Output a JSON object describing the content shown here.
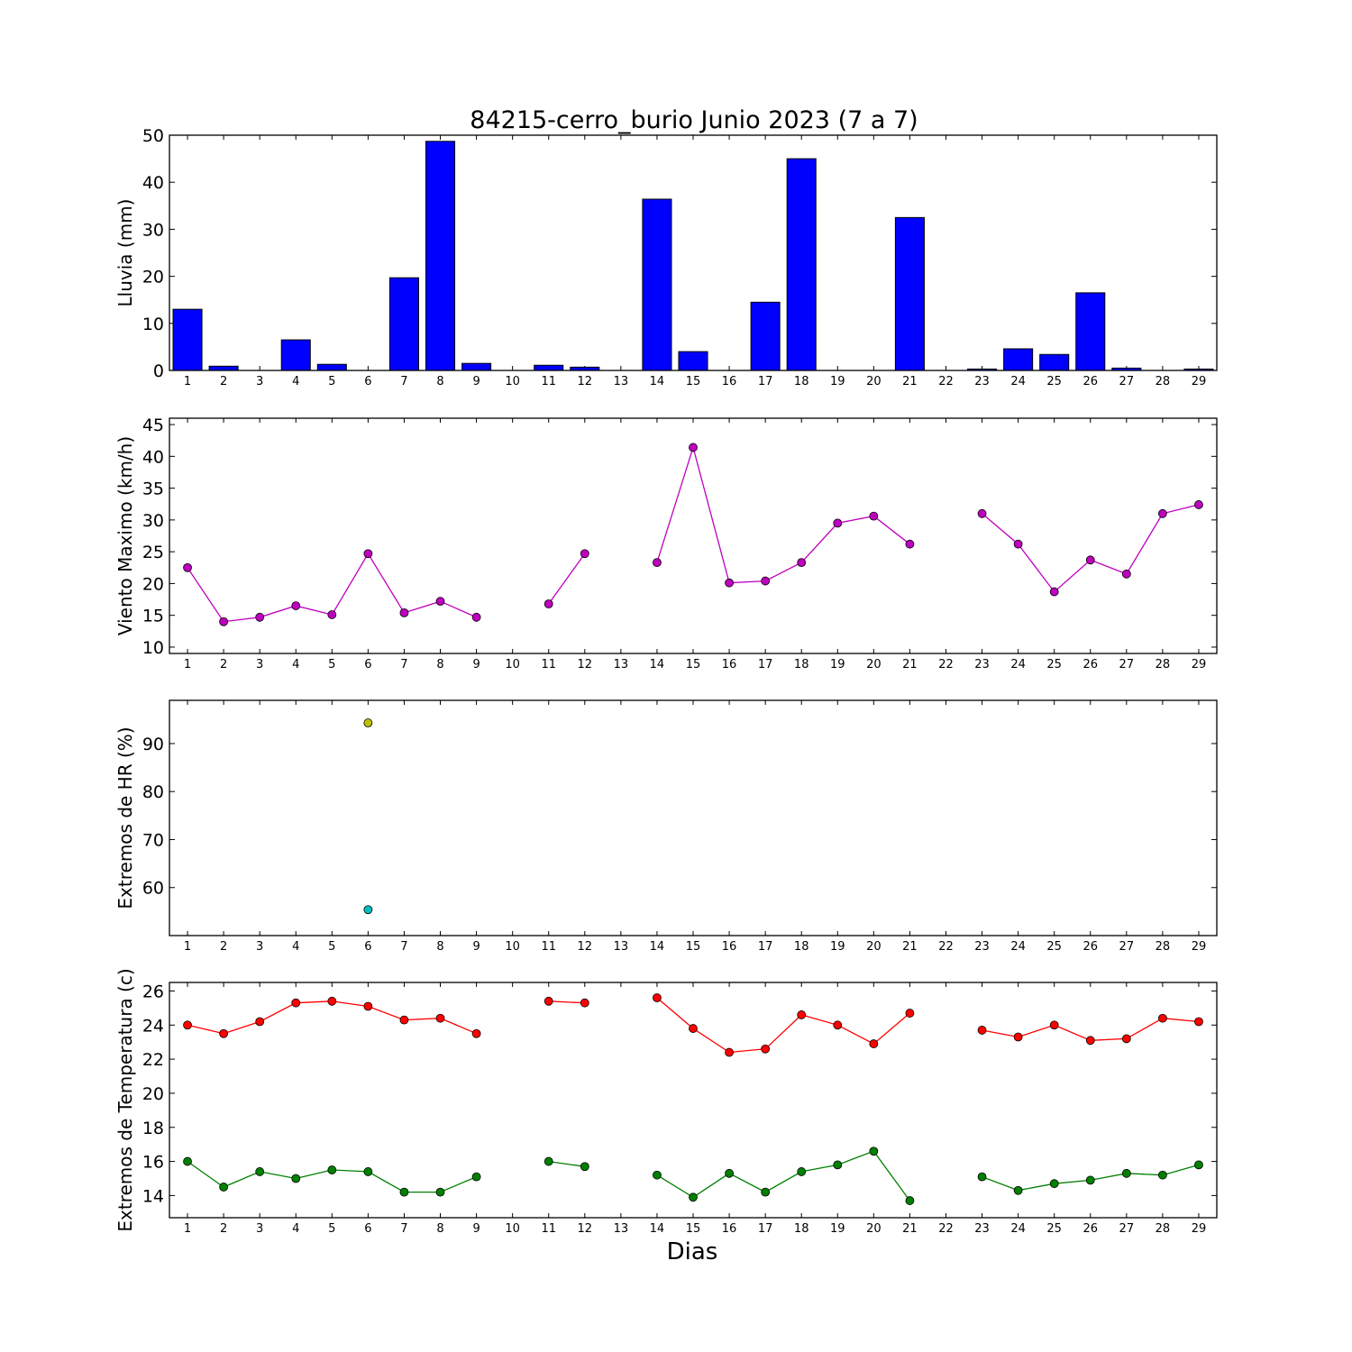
{
  "figure_title": "84215-cerro_burio Junio 2023  (7 a 7)",
  "x_axis_label": "Dias",
  "x_ticks": [
    "1",
    "2",
    "3",
    "4",
    "5",
    "6",
    "7",
    "8",
    "9",
    "10",
    "11",
    "12",
    "13",
    "14",
    "15",
    "16",
    "17",
    "18",
    "19",
    "20",
    "21",
    "22",
    "23",
    "24",
    "25",
    "26",
    "27",
    "28",
    "29"
  ],
  "chart_data": [
    {
      "type": "bar",
      "ylabel": "Lluvia (mm)",
      "ylim": [
        0,
        50
      ],
      "yticks": [
        0,
        10,
        20,
        30,
        40,
        50
      ],
      "categories": [
        1,
        2,
        3,
        4,
        5,
        6,
        7,
        8,
        9,
        10,
        11,
        12,
        13,
        14,
        15,
        16,
        17,
        18,
        19,
        20,
        21,
        22,
        23,
        24,
        25,
        26,
        27,
        28,
        29
      ],
      "values": [
        13.0,
        0.9,
        0,
        6.5,
        1.3,
        0,
        19.7,
        48.7,
        1.5,
        0,
        1.1,
        0.7,
        0,
        36.4,
        4.0,
        0,
        14.5,
        45.0,
        0,
        0,
        32.5,
        0,
        0.3,
        4.6,
        3.4,
        16.5,
        0.5,
        0,
        0.3
      ],
      "color": "#0000ff",
      "grid": false
    },
    {
      "type": "line",
      "ylabel": "Viento Maximo (km/h)",
      "ylim": [
        9,
        46
      ],
      "yticks": [
        10,
        15,
        20,
        25,
        30,
        35,
        40,
        45
      ],
      "x": [
        1,
        2,
        3,
        4,
        5,
        6,
        7,
        8,
        9,
        10,
        11,
        12,
        13,
        14,
        15,
        16,
        17,
        18,
        19,
        20,
        21,
        22,
        23,
        24,
        25,
        26,
        27,
        28,
        29
      ],
      "series": [
        {
          "color": "#bf00bf",
          "values": [
            22.5,
            14.0,
            14.7,
            16.5,
            15.1,
            24.7,
            15.4,
            17.2,
            14.7,
            null,
            16.8,
            24.7,
            null,
            23.3,
            41.4,
            20.1,
            20.4,
            23.3,
            29.5,
            30.6,
            26.2,
            null,
            31.0,
            26.2,
            18.7,
            23.7,
            21.5,
            31.0,
            32.4
          ]
        }
      ],
      "grid": false
    },
    {
      "type": "scatter",
      "ylabel": "Extremos de HR (%)",
      "ylim": [
        50,
        99
      ],
      "yticks": [
        60,
        70,
        80,
        90
      ],
      "x": [
        1,
        2,
        3,
        4,
        5,
        6,
        7,
        8,
        9,
        10,
        11,
        12,
        13,
        14,
        15,
        16,
        17,
        18,
        19,
        20,
        21,
        22,
        23,
        24,
        25,
        26,
        27,
        28,
        29
      ],
      "series": [
        {
          "color": "#bfbf00",
          "values": [
            null,
            null,
            null,
            null,
            null,
            94.3,
            null,
            null,
            null,
            null,
            null,
            null,
            null,
            null,
            null,
            null,
            null,
            null,
            null,
            null,
            null,
            null,
            null,
            null,
            null,
            null,
            null,
            null,
            null
          ]
        },
        {
          "color": "#00bfbf",
          "values": [
            null,
            null,
            null,
            null,
            null,
            55.4,
            null,
            null,
            null,
            null,
            null,
            null,
            null,
            null,
            null,
            null,
            null,
            null,
            null,
            null,
            null,
            null,
            null,
            null,
            null,
            null,
            null,
            null,
            null
          ]
        }
      ],
      "grid": false
    },
    {
      "type": "line",
      "ylabel": "Extremos de Temperatura (c)",
      "ylim": [
        12.7,
        26.5
      ],
      "yticks": [
        14,
        16,
        18,
        20,
        22,
        24,
        26
      ],
      "x": [
        1,
        2,
        3,
        4,
        5,
        6,
        7,
        8,
        9,
        10,
        11,
        12,
        13,
        14,
        15,
        16,
        17,
        18,
        19,
        20,
        21,
        22,
        23,
        24,
        25,
        26,
        27,
        28,
        29
      ],
      "series": [
        {
          "color": "#ff0000",
          "values": [
            24.0,
            23.5,
            24.2,
            25.3,
            25.4,
            25.1,
            24.3,
            24.4,
            23.5,
            null,
            25.4,
            25.3,
            null,
            25.6,
            23.8,
            22.4,
            22.6,
            24.6,
            24.0,
            22.9,
            24.7,
            null,
            23.7,
            23.3,
            24.0,
            23.1,
            23.2,
            24.4,
            24.2
          ]
        },
        {
          "color": "#008000",
          "values": [
            16.0,
            14.5,
            15.4,
            15.0,
            15.5,
            15.4,
            14.2,
            14.2,
            15.1,
            null,
            16.0,
            15.7,
            null,
            15.2,
            13.9,
            15.3,
            14.2,
            15.4,
            15.8,
            16.6,
            13.7,
            null,
            15.1,
            14.3,
            14.7,
            14.9,
            15.3,
            15.2,
            15.8
          ]
        }
      ],
      "grid": false
    }
  ]
}
